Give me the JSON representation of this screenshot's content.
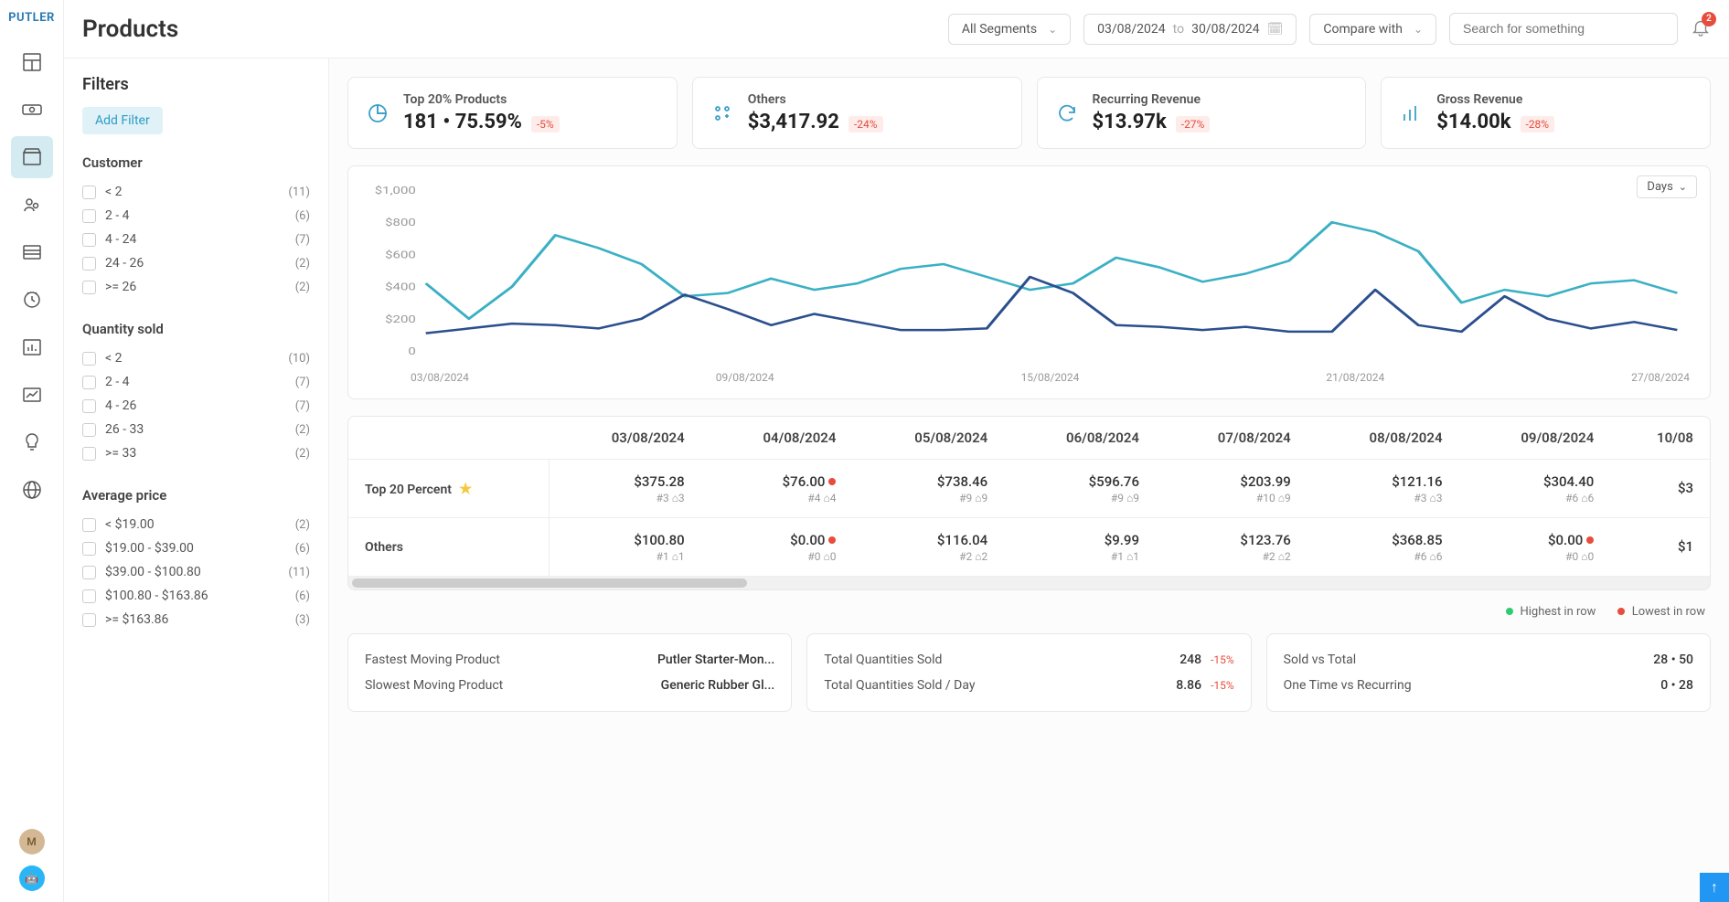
{
  "logo": "PUTLER",
  "page_title": "Products",
  "topbar": {
    "segment_label": "All Segments",
    "date_from": "03/08/2024",
    "date_to": "30/08/2024",
    "date_sep": "to",
    "compare_label": "Compare with",
    "search_placeholder": "Search for something",
    "notif_count": "2"
  },
  "filters": {
    "heading": "Filters",
    "add_filter": "Add Filter",
    "groups": [
      {
        "title": "Customer",
        "items": [
          {
            "label": "< 2",
            "count": "(11)"
          },
          {
            "label": "2 - 4",
            "count": "(6)"
          },
          {
            "label": "4 - 24",
            "count": "(7)"
          },
          {
            "label": "24 - 26",
            "count": "(2)"
          },
          {
            "label": ">= 26",
            "count": "(2)"
          }
        ]
      },
      {
        "title": "Quantity sold",
        "items": [
          {
            "label": "< 2",
            "count": "(10)"
          },
          {
            "label": "2 - 4",
            "count": "(7)"
          },
          {
            "label": "4 - 26",
            "count": "(7)"
          },
          {
            "label": "26 - 33",
            "count": "(2)"
          },
          {
            "label": ">= 33",
            "count": "(2)"
          }
        ]
      },
      {
        "title": "Average price",
        "items": [
          {
            "label": "< $19.00",
            "count": "(2)"
          },
          {
            "label": "$19.00 - $39.00",
            "count": "(6)"
          },
          {
            "label": "$39.00 - $100.80",
            "count": "(11)"
          },
          {
            "label": "$100.80 - $163.86",
            "count": "(6)"
          },
          {
            "label": ">= $163.86",
            "count": "(3)"
          }
        ]
      }
    ]
  },
  "kpis": [
    {
      "title": "Top 20% Products",
      "value": "181 • 75.59%",
      "change": "-5%"
    },
    {
      "title": "Others",
      "value": "$3,417.92",
      "change": "-24%"
    },
    {
      "title": "Recurring Revenue",
      "value": "$13.97k",
      "change": "-27%"
    },
    {
      "title": "Gross Revenue",
      "value": "$14.00k",
      "change": "-28%"
    }
  ],
  "chart": {
    "type": "line",
    "days_selector": "Days",
    "ylim": [
      0,
      1000
    ],
    "ytick_step": 200,
    "ylabels": [
      "$1,000",
      "$800",
      "$600",
      "$400",
      "$200",
      "0"
    ],
    "xlabels": [
      "03/08/2024",
      "09/08/2024",
      "15/08/2024",
      "21/08/2024",
      "27/08/2024"
    ],
    "series": [
      {
        "name": "Top 20 Percent",
        "color": "#3ab0c4",
        "stroke_width": 2.5,
        "values": [
          420,
          200,
          400,
          720,
          640,
          540,
          340,
          360,
          450,
          380,
          420,
          510,
          540,
          460,
          380,
          420,
          580,
          520,
          430,
          480,
          560,
          800,
          740,
          620,
          300,
          380,
          340,
          420,
          440,
          360
        ]
      },
      {
        "name": "Others",
        "color": "#2b4f8e",
        "stroke_width": 2.5,
        "values": [
          110,
          140,
          170,
          160,
          140,
          200,
          350,
          260,
          160,
          230,
          180,
          130,
          130,
          140,
          460,
          360,
          160,
          150,
          130,
          150,
          120,
          120,
          380,
          160,
          120,
          340,
          200,
          140,
          180,
          130
        ]
      }
    ],
    "grid_color": "#f0f0f0",
    "label_color": "#999999",
    "label_fontsize": 12
  },
  "table": {
    "dates": [
      "03/08/2024",
      "04/08/2024",
      "05/08/2024",
      "06/08/2024",
      "07/08/2024",
      "08/08/2024",
      "09/08/2024",
      "10/08"
    ],
    "rows": [
      {
        "name": "Top 20 Percent",
        "star": true,
        "cells": [
          {
            "amount": "$375.28",
            "sub": "#3  ⌂3",
            "mark": ""
          },
          {
            "amount": "$76.00",
            "sub": "#4  ⌂4",
            "mark": "lo"
          },
          {
            "amount": "$738.46",
            "sub": "#9  ⌂9",
            "mark": ""
          },
          {
            "amount": "$596.76",
            "sub": "#9  ⌂9",
            "mark": ""
          },
          {
            "amount": "$203.99",
            "sub": "#10  ⌂9",
            "mark": ""
          },
          {
            "amount": "$121.16",
            "sub": "#3  ⌂3",
            "mark": ""
          },
          {
            "amount": "$304.40",
            "sub": "#6  ⌂6",
            "mark": ""
          },
          {
            "amount": "$3",
            "sub": "",
            "mark": ""
          }
        ]
      },
      {
        "name": "Others",
        "star": false,
        "cells": [
          {
            "amount": "$100.80",
            "sub": "#1  ⌂1",
            "mark": ""
          },
          {
            "amount": "$0.00",
            "sub": "#0  ⌂0",
            "mark": "lo"
          },
          {
            "amount": "$116.04",
            "sub": "#2  ⌂2",
            "mark": ""
          },
          {
            "amount": "$9.99",
            "sub": "#1  ⌂1",
            "mark": ""
          },
          {
            "amount": "$123.76",
            "sub": "#2  ⌂2",
            "mark": ""
          },
          {
            "amount": "$368.85",
            "sub": "#6  ⌂6",
            "mark": ""
          },
          {
            "amount": "$0.00",
            "sub": "#0  ⌂0",
            "mark": "lo"
          },
          {
            "amount": "$1",
            "sub": "",
            "mark": ""
          }
        ]
      }
    ],
    "legend_hi": "Highest in row",
    "legend_lo": "Lowest in row",
    "hi_color": "#2ecc71",
    "lo_color": "#e74c3c"
  },
  "stats": {
    "cards": [
      {
        "lines": [
          {
            "label": "Fastest Moving Product",
            "val": "Putler Starter-Mon...",
            "chg": ""
          },
          {
            "label": "Slowest Moving Product",
            "val": "Generic Rubber Gl...",
            "chg": ""
          }
        ]
      },
      {
        "lines": [
          {
            "label": "Total Quantities Sold",
            "val": "248",
            "chg": "-15%"
          },
          {
            "label": "Total Quantities Sold / Day",
            "val": "8.86",
            "chg": "-15%"
          }
        ]
      },
      {
        "lines": [
          {
            "label": "Sold vs Total",
            "val": "28 • 50",
            "chg": ""
          },
          {
            "label": "One Time vs Recurring",
            "val": "0 • 28",
            "chg": ""
          }
        ]
      }
    ]
  }
}
